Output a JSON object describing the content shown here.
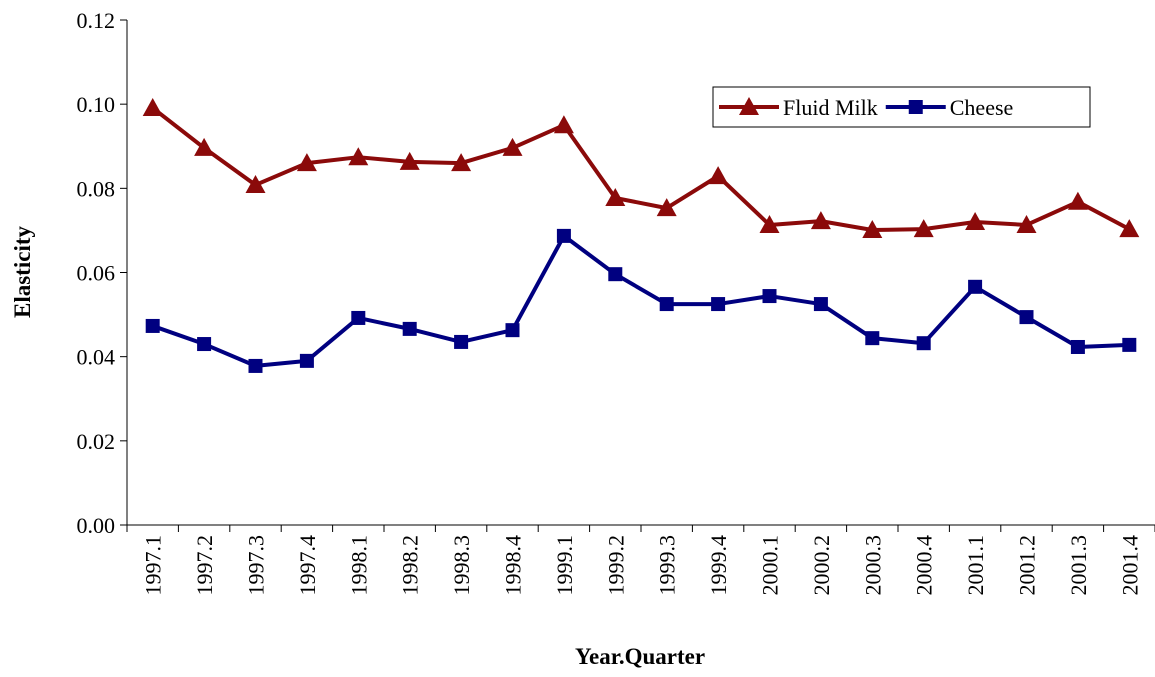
{
  "chart_data": {
    "type": "line",
    "x_label": "Year.Quarter",
    "y_label": "Elasticity",
    "categories": [
      "1997.1",
      "1997.2",
      "1997.3",
      "1997.4",
      "1998.1",
      "1998.2",
      "1998.3",
      "1998.4",
      "1999.1",
      "1999.2",
      "1999.3",
      "1999.4",
      "2000.1",
      "2000.2",
      "2000.3",
      "2000.4",
      "2001.1",
      "2001.2",
      "2001.3",
      "2001.4"
    ],
    "series": [
      {
        "name": "Fluid Milk",
        "color": "#8b0a0a",
        "marker": "triangle",
        "values": [
          0.0991,
          0.0896,
          0.0808,
          0.086,
          0.0874,
          0.0863,
          0.086,
          0.0896,
          0.095,
          0.0777,
          0.0753,
          0.0829,
          0.0713,
          0.0722,
          0.0701,
          0.0703,
          0.072,
          0.0713,
          0.0768,
          0.0703
        ]
      },
      {
        "name": "Cheese",
        "color": "#000080",
        "marker": "square",
        "values": [
          0.0473,
          0.043,
          0.0378,
          0.039,
          0.0492,
          0.0466,
          0.0435,
          0.0463,
          0.0687,
          0.0596,
          0.0525,
          0.0525,
          0.0544,
          0.0525,
          0.0444,
          0.0432,
          0.0566,
          0.0494,
          0.0423,
          0.0428
        ]
      }
    ],
    "ylim": [
      0,
      0.12
    ],
    "yticks": [
      {
        "value": 0,
        "label": "0.00"
      },
      0.02,
      0.04,
      0.06,
      0.08,
      {
        "value": 0.1,
        "label": "0.10"
      },
      0.12
    ],
    "grid": false,
    "legend": "upper right"
  }
}
